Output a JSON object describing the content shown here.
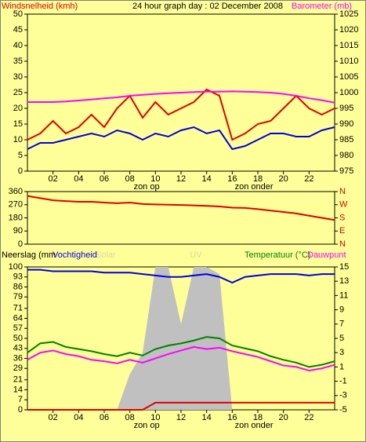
{
  "chart_data": [
    {
      "type": "line",
      "title": "24 hour graph day : 02 December 2008",
      "x": [
        0,
        1,
        2,
        3,
        4,
        5,
        6,
        7,
        8,
        9,
        10,
        11,
        12,
        13,
        14,
        15,
        16,
        17,
        18,
        19,
        20,
        21,
        22,
        23,
        24
      ],
      "xlim": [
        0,
        24
      ],
      "xticks": [
        {
          "value": 2,
          "label": "02"
        },
        {
          "value": 4,
          "label": "04"
        },
        {
          "value": 6,
          "label": "06"
        },
        {
          "value": 8,
          "label": "08"
        },
        {
          "value": 10,
          "label": "10"
        },
        {
          "value": 12,
          "label": "12"
        },
        {
          "value": 14,
          "label": "14"
        },
        {
          "value": 16,
          "label": "16"
        },
        {
          "value": 18,
          "label": "18"
        },
        {
          "value": 20,
          "label": "20"
        },
        {
          "value": 22,
          "label": "22"
        }
      ],
      "annotations": [
        {
          "text": "zon op",
          "x": 8.3
        },
        {
          "text": "zon onder",
          "x": 16.2
        }
      ],
      "ylim": [
        0,
        50
      ],
      "yticks": [
        0,
        5,
        10,
        15,
        20,
        25,
        30,
        35,
        40,
        45,
        50
      ],
      "y2lim": [
        975,
        1025
      ],
      "y2ticks": [
        975,
        980,
        985,
        990,
        995,
        1000,
        1005,
        1010,
        1015,
        1020,
        1025
      ],
      "series": [
        {
          "name": "Windsnelheid (kmh)",
          "color": "#e00000",
          "values": [
            10,
            12,
            16,
            12,
            14,
            18,
            14,
            20,
            24,
            17,
            22,
            18,
            20,
            22,
            26,
            24,
            10,
            12,
            15,
            16,
            20,
            24,
            20,
            18,
            20
          ]
        },
        {
          "color": "#0000e0",
          "values": [
            7,
            9,
            9,
            10,
            11,
            12,
            11,
            13,
            12,
            10,
            12,
            11,
            13,
            14,
            12,
            13,
            7,
            8,
            10,
            12,
            12,
            11,
            11,
            13,
            14
          ]
        },
        {
          "name": "Barometer (mb)",
          "color": "#ff00ff",
          "axis": "y2",
          "values": [
            997,
            997,
            997,
            997.2,
            997.5,
            997.8,
            998.2,
            998.5,
            999,
            999.3,
            999.6,
            999.8,
            1000,
            1000.2,
            1000.3,
            1000.3,
            1000.4,
            1000.3,
            1000.2,
            1000,
            999.6,
            999,
            998.2,
            997.6,
            996.8
          ]
        }
      ]
    },
    {
      "type": "line",
      "x": [
        0,
        1,
        2,
        3,
        4,
        5,
        6,
        7,
        8,
        9,
        10,
        11,
        12,
        13,
        14,
        15,
        16,
        17,
        18,
        19,
        20,
        21,
        22,
        23,
        24
      ],
      "xlim": [
        0,
        24
      ],
      "ylim": [
        0,
        360
      ],
      "yticks": [
        0,
        90,
        180,
        270,
        360
      ],
      "y2lim": [
        0,
        360
      ],
      "y2ticks": [
        {
          "value": 360,
          "label": "N"
        },
        {
          "value": 270,
          "label": "W"
        },
        {
          "value": 180,
          "label": "S"
        },
        {
          "value": 90,
          "label": "E"
        },
        {
          "value": 0,
          "label": "N"
        }
      ],
      "series": [
        {
          "color": "#e00000",
          "values": [
            330,
            315,
            300,
            295,
            290,
            290,
            285,
            280,
            285,
            275,
            272,
            270,
            268,
            265,
            262,
            258,
            250,
            248,
            240,
            230,
            220,
            210,
            195,
            180,
            165
          ]
        }
      ]
    },
    {
      "type": "line",
      "x": [
        0,
        1,
        2,
        3,
        4,
        5,
        6,
        7,
        8,
        9,
        10,
        11,
        12,
        13,
        14,
        15,
        16,
        17,
        18,
        19,
        20,
        21,
        22,
        23,
        24
      ],
      "xlim": [
        0,
        24
      ],
      "xticks": [
        {
          "value": 2,
          "label": "02"
        },
        {
          "value": 4,
          "label": "04"
        },
        {
          "value": 6,
          "label": "06"
        },
        {
          "value": 8,
          "label": "08"
        },
        {
          "value": 10,
          "label": "10"
        },
        {
          "value": 12,
          "label": "12"
        },
        {
          "value": 14,
          "label": "14"
        },
        {
          "value": 16,
          "label": "16"
        },
        {
          "value": 18,
          "label": "18"
        },
        {
          "value": 20,
          "label": "20"
        },
        {
          "value": 22,
          "label": "22"
        }
      ],
      "annotations": [
        {
          "text": "zon op",
          "x": 8.3
        },
        {
          "text": "zon onder",
          "x": 16.2
        }
      ],
      "extra_legend": "UV",
      "ylim": [
        0,
        100
      ],
      "yticks": [
        0,
        7,
        14,
        21,
        29,
        36,
        43,
        50,
        57,
        64,
        71,
        79,
        86,
        93,
        100
      ],
      "y2lim": [
        -5,
        15
      ],
      "y2ticks": [
        -5,
        -3,
        -1,
        1,
        3,
        5,
        7,
        9,
        11,
        13,
        15
      ],
      "series": [
        {
          "name": "Solar",
          "color": "#c0c0c0",
          "style": "area",
          "values": [
            0,
            0,
            0,
            0,
            0,
            0,
            0,
            0,
            25,
            40,
            100,
            100,
            60,
            100,
            100,
            95,
            0,
            0,
            0,
            0,
            0,
            0,
            0,
            0,
            0
          ]
        },
        {
          "name": "Neerslag (mm",
          "color": "#e00000",
          "values": [
            0,
            0,
            0,
            0,
            0,
            0,
            0,
            0,
            0,
            0,
            5,
            5,
            5,
            5,
            5,
            5,
            5,
            5,
            5,
            5,
            5,
            5,
            5,
            5,
            5
          ]
        },
        {
          "name": "Vochtigheid",
          "color": "#0000e0",
          "values": [
            98,
            98,
            97,
            97,
            97,
            97,
            96,
            96,
            96,
            95,
            94,
            93,
            93,
            94,
            95,
            93,
            89,
            93,
            94,
            95,
            95,
            95,
            94,
            95,
            95
          ]
        },
        {
          "name": "Temperatuur (°C)",
          "color": "#008000",
          "axis": "y2",
          "values": [
            3,
            4.3,
            4.5,
            3.8,
            3.5,
            3.2,
            2.8,
            2.5,
            3,
            2.6,
            3.5,
            4,
            4.3,
            4.7,
            5.2,
            5,
            4,
            3.6,
            3.2,
            2.5,
            2,
            1.6,
            1,
            1.3,
            1.8
          ]
        },
        {
          "name": "Dauwpunt",
          "color": "#ff00ff",
          "axis": "y2",
          "values": [
            2,
            3,
            3.3,
            2.8,
            2.5,
            2,
            1.8,
            1.5,
            2,
            1.6,
            2.2,
            2.8,
            3.3,
            3.8,
            3.5,
            3.7,
            3.2,
            2.8,
            2.4,
            1.8,
            1.2,
            1,
            0.5,
            0.8,
            1.3
          ]
        }
      ]
    }
  ]
}
